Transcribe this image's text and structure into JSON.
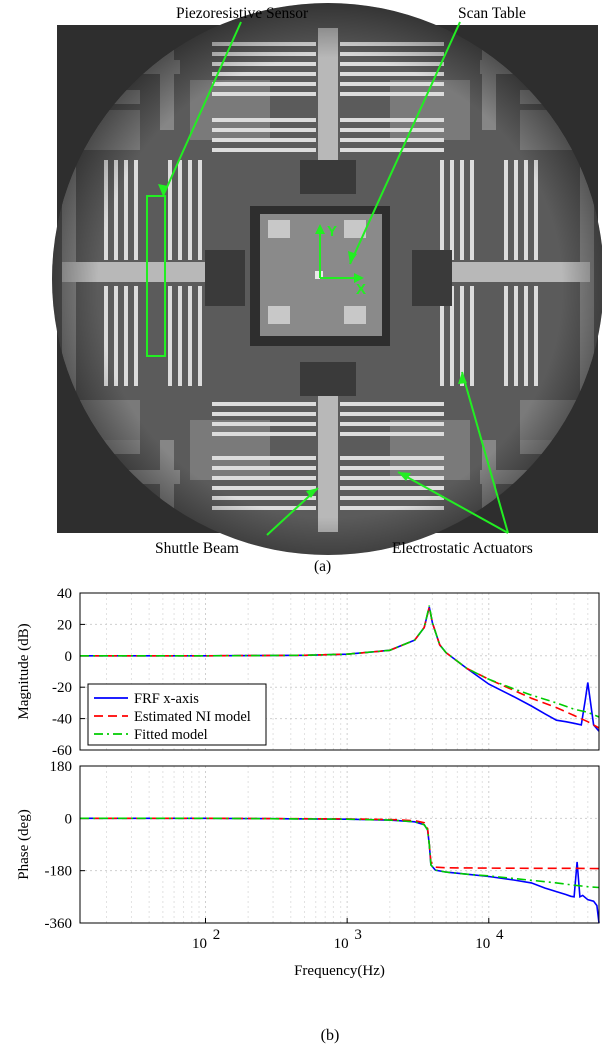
{
  "figure_a": {
    "annotations": {
      "piezo": "Piezoresistive Sensor",
      "scan_table": "Scan Table",
      "shuttle": "Shuttle Beam",
      "actuators": "Electrostatic Actuators"
    },
    "axis_x": "X",
    "axis_y": "Y",
    "caption": "(a)",
    "colors": {
      "annotation": "#22ee22",
      "background": "#444444"
    }
  },
  "figure_b": {
    "caption": "(b)"
  },
  "chart_data": [
    {
      "type": "line",
      "panel": "magnitude",
      "ylabel": "Magnitude (dB)",
      "xlabel": "",
      "xscale": "log",
      "xlim": [
        13,
        60000
      ],
      "ylim": [
        -60,
        40
      ],
      "yticks": [
        "40",
        "20",
        "0",
        "-20",
        "-40",
        "-60"
      ],
      "grid": true,
      "legend": {
        "placement": "bottom-left",
        "entries": [
          "FRF x-axis",
          "Estimated NI model",
          "Fitted model"
        ]
      },
      "series": [
        {
          "name": "FRF x-axis",
          "color": "#0000ff",
          "style": "solid",
          "x": [
            13,
            100,
            500,
            1000,
            2000,
            3000,
            3500,
            3800,
            4000,
            4500,
            5000,
            7000,
            10000,
            15000,
            20000,
            25000,
            30000,
            35000,
            40000,
            45000,
            48000,
            50000,
            55000,
            60000
          ],
          "y": [
            0,
            0,
            0.3,
            1,
            3.5,
            10,
            18,
            31,
            21,
            7,
            2,
            -8,
            -18,
            -26,
            -32,
            -37,
            -41,
            -42,
            -43,
            -44,
            -28,
            -17,
            -44,
            -48
          ]
        },
        {
          "name": "Estimated NI model",
          "color": "#ff0000",
          "style": "dashed",
          "x": [
            13,
            100,
            500,
            1000,
            2000,
            3000,
            3500,
            3800,
            4000,
            4500,
            5000,
            7000,
            10000,
            15000,
            20000,
            30000,
            40000,
            50000,
            60000
          ],
          "y": [
            0,
            0,
            0.3,
            1,
            3.5,
            10,
            18,
            31,
            21,
            7,
            2,
            -8,
            -15,
            -22,
            -27,
            -33,
            -38,
            -42,
            -46
          ]
        },
        {
          "name": "Fitted model",
          "color": "#00cc00",
          "style": "dashdot",
          "x": [
            13,
            100,
            500,
            1000,
            2000,
            3000,
            3500,
            3800,
            4000,
            4500,
            5000,
            7000,
            10000,
            15000,
            20000,
            30000,
            40000,
            50000,
            60000
          ],
          "y": [
            0,
            0,
            0.3,
            1,
            3.5,
            10,
            18,
            32,
            21,
            7,
            2,
            -8,
            -15,
            -21,
            -25,
            -30,
            -34,
            -36,
            -39
          ]
        }
      ]
    },
    {
      "type": "line",
      "panel": "phase",
      "ylabel": "Phase (deg)",
      "xlabel": "Frequency(Hz)",
      "xscale": "log",
      "xlim": [
        13,
        60000
      ],
      "ylim": [
        -360,
        180
      ],
      "yticks": [
        "180",
        "0",
        "-180",
        "-360"
      ],
      "xticks": [
        {
          "value": 100,
          "base": "10",
          "exp": "2"
        },
        {
          "value": 1000,
          "base": "10",
          "exp": "3"
        },
        {
          "value": 10000,
          "base": "10",
          "exp": "4"
        }
      ],
      "grid": true,
      "series": [
        {
          "name": "FRF x-axis",
          "color": "#0000ff",
          "style": "solid",
          "x": [
            13,
            100,
            1000,
            2000,
            3000,
            3500,
            3700,
            3800,
            3900,
            4200,
            5000,
            7000,
            10000,
            15000,
            20000,
            25000,
            30000,
            35000,
            38000,
            40000,
            42000,
            44000,
            46000,
            50000,
            55000,
            58000,
            60000
          ],
          "y": [
            0,
            0,
            -3,
            -6,
            -12,
            -22,
            -40,
            -90,
            -160,
            -178,
            -185,
            -192,
            -200,
            -212,
            -222,
            -240,
            -252,
            -262,
            -268,
            -270,
            -150,
            -270,
            -265,
            -280,
            -285,
            -300,
            -360
          ]
        },
        {
          "name": "Estimated NI model",
          "color": "#ff0000",
          "style": "dashed",
          "x": [
            13,
            100,
            1000,
            2000,
            3000,
            3500,
            3700,
            3800,
            3900,
            4200,
            5000,
            10000,
            20000,
            40000,
            60000
          ],
          "y": [
            0,
            0,
            -2,
            -4,
            -8,
            -15,
            -35,
            -90,
            -150,
            -168,
            -170,
            -171,
            -172,
            -172,
            -173
          ]
        },
        {
          "name": "Fitted model",
          "color": "#00cc00",
          "style": "dashdot",
          "x": [
            13,
            100,
            1000,
            2000,
            3000,
            3500,
            3700,
            3800,
            3900,
            4200,
            5000,
            7000,
            10000,
            15000,
            20000,
            30000,
            40000,
            50000,
            60000
          ],
          "y": [
            0,
            0,
            -3,
            -6,
            -12,
            -22,
            -40,
            -90,
            -160,
            -178,
            -185,
            -192,
            -198,
            -207,
            -213,
            -222,
            -230,
            -235,
            -238
          ]
        }
      ]
    }
  ]
}
